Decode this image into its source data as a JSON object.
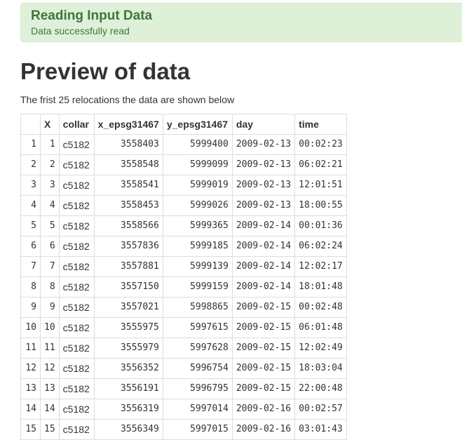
{
  "alert": {
    "title": "Reading Input Data",
    "message": "Data successfully read"
  },
  "page_title": "Preview of data",
  "description": "The frist 25 relocations the data are shown below",
  "table": {
    "columns": [
      "",
      "X",
      "collar",
      "x_epsg31467",
      "y_epsg31467",
      "day",
      "time"
    ],
    "rows": [
      [
        "1",
        "1",
        "c5182",
        "3558403",
        "5999400",
        "2009-02-13",
        "00:02:23"
      ],
      [
        "2",
        "2",
        "c5182",
        "3558548",
        "5999099",
        "2009-02-13",
        "06:02:21"
      ],
      [
        "3",
        "3",
        "c5182",
        "3558541",
        "5999019",
        "2009-02-13",
        "12:01:51"
      ],
      [
        "4",
        "4",
        "c5182",
        "3558453",
        "5999026",
        "2009-02-13",
        "18:00:55"
      ],
      [
        "5",
        "5",
        "c5182",
        "3558566",
        "5999365",
        "2009-02-14",
        "00:01:36"
      ],
      [
        "6",
        "6",
        "c5182",
        "3557836",
        "5999185",
        "2009-02-14",
        "06:02:24"
      ],
      [
        "7",
        "7",
        "c5182",
        "3557881",
        "5999139",
        "2009-02-14",
        "12:02:17"
      ],
      [
        "8",
        "8",
        "c5182",
        "3557150",
        "5999159",
        "2009-02-14",
        "18:01:48"
      ],
      [
        "9",
        "9",
        "c5182",
        "3557021",
        "5998865",
        "2009-02-15",
        "00:02:48"
      ],
      [
        "10",
        "10",
        "c5182",
        "3555975",
        "5997615",
        "2009-02-15",
        "06:01:48"
      ],
      [
        "11",
        "11",
        "c5182",
        "3555979",
        "5997628",
        "2009-02-15",
        "12:02:49"
      ],
      [
        "12",
        "12",
        "c5182",
        "3556352",
        "5996754",
        "2009-02-15",
        "18:03:04"
      ],
      [
        "13",
        "13",
        "c5182",
        "3556191",
        "5996795",
        "2009-02-15",
        "22:00:48"
      ],
      [
        "14",
        "14",
        "c5182",
        "3556319",
        "5997014",
        "2009-02-16",
        "00:02:57"
      ],
      [
        "15",
        "15",
        "c5182",
        "3556349",
        "5997015",
        "2009-02-16",
        "03:01:43"
      ]
    ]
  }
}
